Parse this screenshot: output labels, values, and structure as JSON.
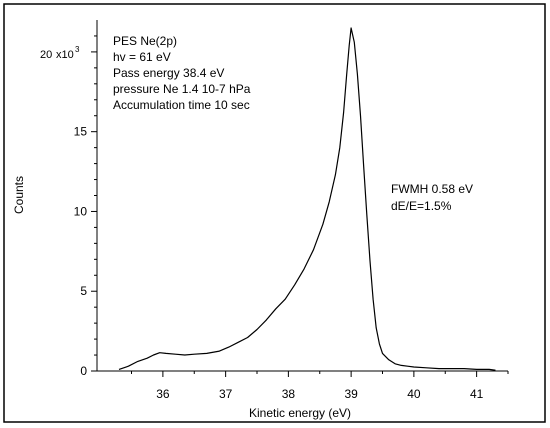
{
  "chart_data": {
    "type": "line",
    "xlabel": "Kinetic energy (eV)",
    "ylabel": "Counts",
    "x_ticks": [
      36,
      37,
      38,
      39,
      40,
      41
    ],
    "y_ticks": [
      0,
      5,
      10,
      15,
      20
    ],
    "y_tick_labels": [
      "0",
      "5",
      "10",
      "15",
      "20"
    ],
    "y_scale_label": "x10",
    "y_scale_exponent": "3",
    "xlim": [
      34.95,
      41.5
    ],
    "ylim": [
      0,
      22
    ],
    "y_units_multiplier": 1000,
    "grid": false,
    "legend": "none",
    "annotation_top_left": [
      "PES Ne(2p)",
      "hv = 61 eV",
      "Pass energy 38.4 eV",
      "pressure Ne 1.4 10-7 hPa",
      "Accumulation time 10 sec"
    ],
    "annotation_right": [
      "FWMH 0.58 eV",
      "dE/E=1.5%"
    ],
    "series": [
      {
        "color": "#000000",
        "x": [
          35.3,
          35.45,
          35.6,
          35.75,
          35.85,
          35.95,
          36.05,
          36.2,
          36.35,
          36.5,
          36.7,
          36.9,
          37.05,
          37.2,
          37.35,
          37.5,
          37.65,
          37.8,
          37.95,
          38.1,
          38.25,
          38.4,
          38.55,
          38.65,
          38.75,
          38.82,
          38.88,
          38.93,
          38.97,
          39.0,
          39.05,
          39.1,
          39.15,
          39.2,
          39.25,
          39.3,
          39.35,
          39.4,
          39.45,
          39.5,
          39.6,
          39.7,
          39.8,
          39.9,
          40.0,
          40.2,
          40.4,
          40.6,
          40.8,
          41.0,
          41.2,
          41.3
        ],
        "y": [
          0.1,
          0.3,
          0.6,
          0.8,
          1.0,
          1.15,
          1.1,
          1.05,
          1.0,
          1.05,
          1.1,
          1.25,
          1.5,
          1.8,
          2.1,
          2.6,
          3.2,
          3.9,
          4.5,
          5.4,
          6.4,
          7.6,
          9.2,
          10.6,
          12.3,
          14.0,
          16.2,
          18.6,
          20.4,
          21.5,
          20.6,
          18.6,
          16.0,
          12.8,
          9.8,
          6.9,
          4.5,
          2.7,
          1.7,
          1.1,
          0.7,
          0.45,
          0.35,
          0.3,
          0.25,
          0.2,
          0.15,
          0.15,
          0.15,
          0.1,
          0.1,
          0.05
        ]
      }
    ]
  }
}
